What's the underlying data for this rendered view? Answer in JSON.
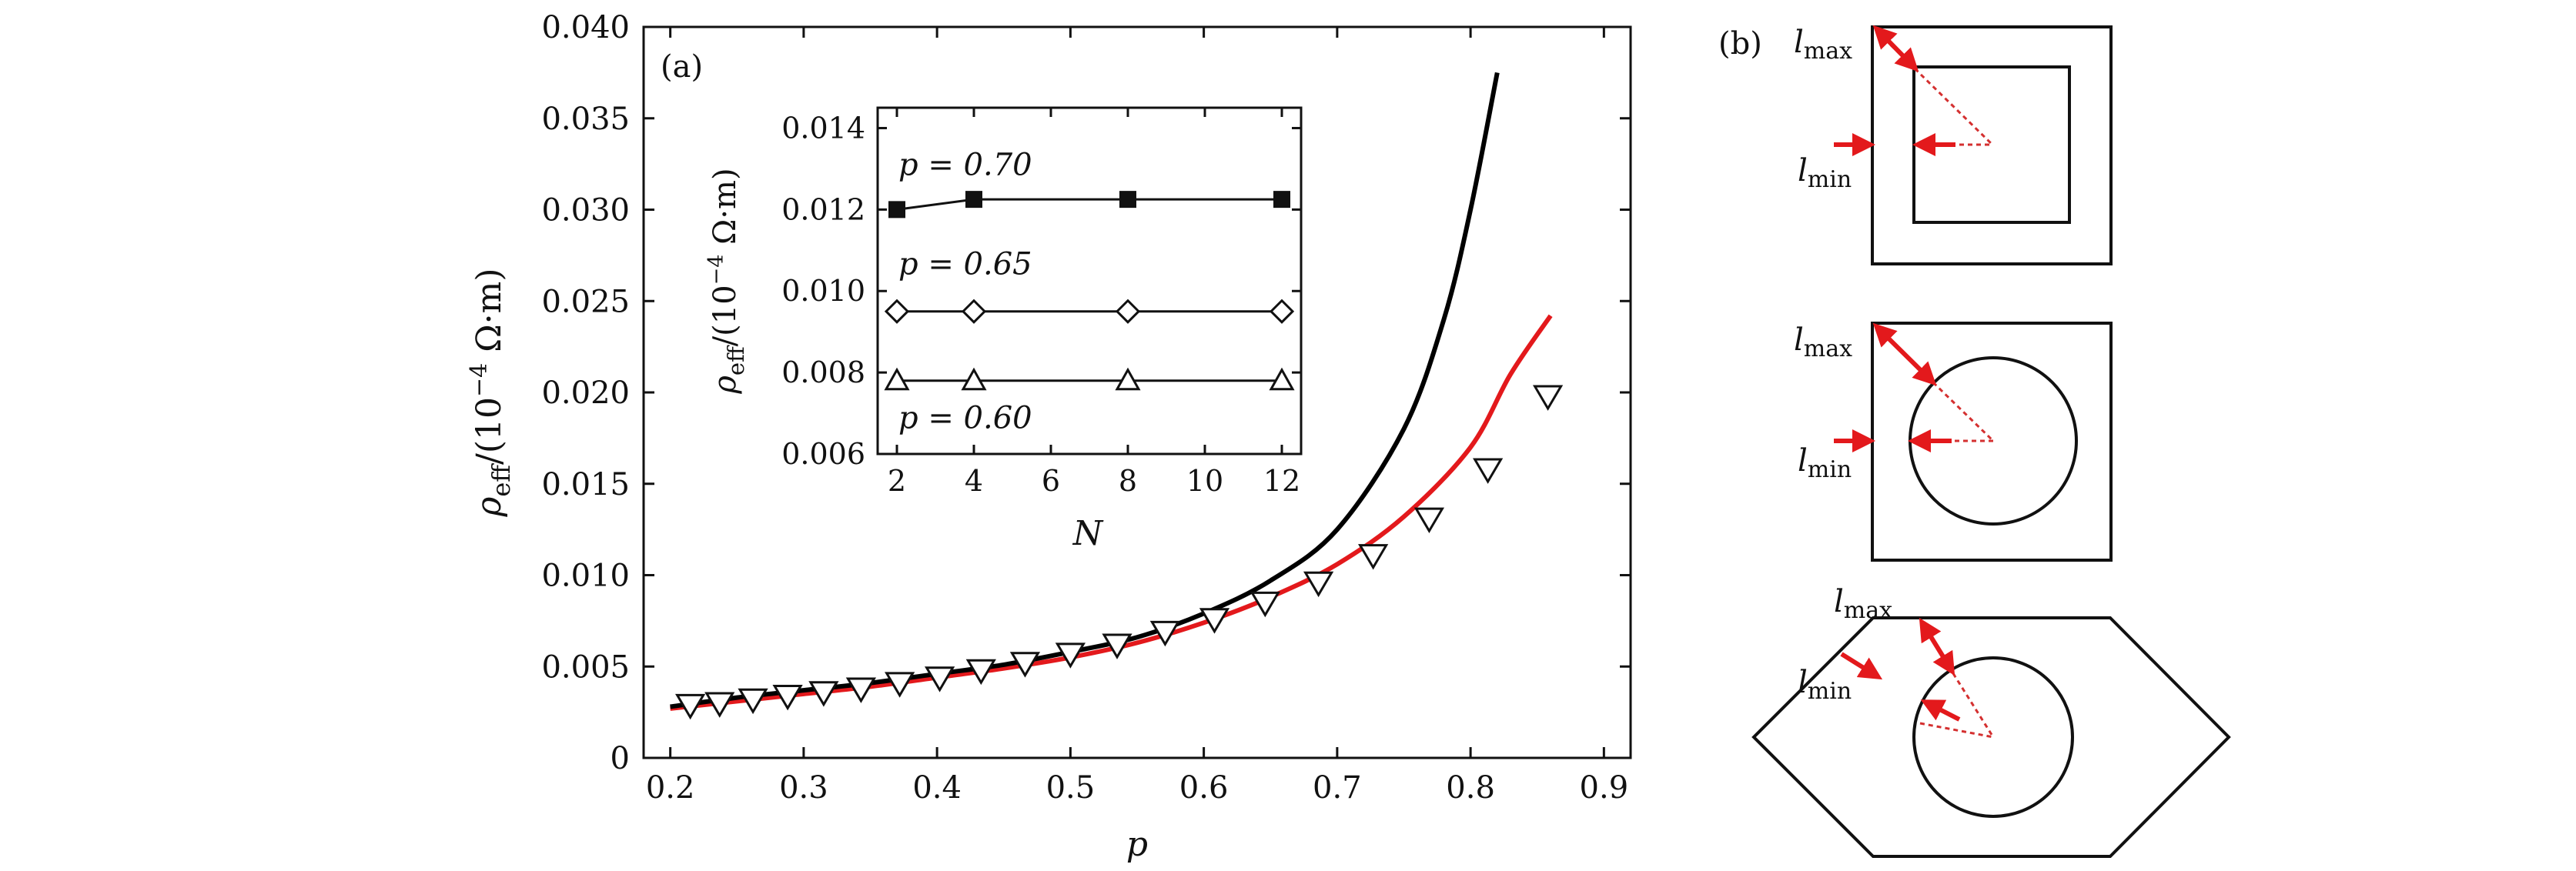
{
  "chart_data": [
    {
      "type": "line",
      "panel_label": "(a)",
      "xlabel": "p",
      "ylabel": "ρ_eff/(10^-4 Ω·m)",
      "xlim": [
        0.18,
        0.92
      ],
      "ylim": [
        0,
        0.04
      ],
      "x_ticks": [
        "0.2",
        "0.3",
        "0.4",
        "0.5",
        "0.6",
        "0.7",
        "0.8",
        "0.9"
      ],
      "y_ticks": [
        "0",
        "0.005",
        "0.010",
        "0.015",
        "0.020",
        "0.025",
        "0.030",
        "0.035",
        "0.040"
      ],
      "grid": false,
      "series": [
        {
          "style": "black solid line",
          "color": "#000000",
          "x": [
            0.2,
            0.25,
            0.3,
            0.35,
            0.4,
            0.45,
            0.5,
            0.55,
            0.6,
            0.65,
            0.7,
            0.75,
            0.78,
            0.8,
            0.82
          ],
          "y": [
            0.0028,
            0.0033,
            0.0037,
            0.0041,
            0.0046,
            0.0051,
            0.0058,
            0.0066,
            0.0079,
            0.0097,
            0.0125,
            0.018,
            0.024,
            0.03,
            0.0375
          ]
        },
        {
          "style": "red solid line",
          "color": "#e3191c",
          "x": [
            0.2,
            0.25,
            0.3,
            0.35,
            0.4,
            0.45,
            0.5,
            0.55,
            0.6,
            0.65,
            0.7,
            0.75,
            0.8,
            0.83,
            0.86
          ],
          "y": [
            0.0027,
            0.0031,
            0.0035,
            0.0039,
            0.0044,
            0.0049,
            0.0055,
            0.0063,
            0.0074,
            0.0088,
            0.0106,
            0.0132,
            0.017,
            0.021,
            0.0242
          ]
        },
        {
          "style": "open down-triangle markers",
          "color": "#000000",
          "x": [
            0.215,
            0.237,
            0.262,
            0.288,
            0.315,
            0.343,
            0.372,
            0.402,
            0.433,
            0.466,
            0.5,
            0.535,
            0.571,
            0.608,
            0.646,
            0.686,
            0.727,
            0.769,
            0.813,
            0.858
          ],
          "y": [
            0.0029,
            0.003,
            0.0032,
            0.0034,
            0.0036,
            0.0038,
            0.0041,
            0.0044,
            0.0048,
            0.0052,
            0.0057,
            0.0062,
            0.0069,
            0.0076,
            0.0085,
            0.0096,
            0.0111,
            0.0131,
            0.0158,
            0.0198
          ]
        }
      ]
    },
    {
      "type": "line",
      "panel_label": "",
      "xlabel": "N",
      "ylabel": "ρ_eff/(10^-4 Ω·m)",
      "xlim": [
        1.5,
        12.5
      ],
      "ylim": [
        0.006,
        0.0145
      ],
      "x_ticks": [
        "2",
        "4",
        "6",
        "8",
        "10",
        "12"
      ],
      "y_ticks": [
        "0.006",
        "0.008",
        "0.010",
        "0.012",
        "0.014"
      ],
      "grid": false,
      "series": [
        {
          "name": "p = 0.70",
          "marker": "filled square",
          "x": [
            2,
            4,
            8,
            12
          ],
          "y": [
            0.012,
            0.01225,
            0.01225,
            0.01225
          ]
        },
        {
          "name": "p = 0.65",
          "marker": "open diamond",
          "x": [
            2,
            4,
            8,
            12
          ],
          "y": [
            0.0095,
            0.0095,
            0.0095,
            0.0095
          ]
        },
        {
          "name": "p = 0.60",
          "marker": "open up-triangle",
          "x": [
            2,
            4,
            8,
            12
          ],
          "y": [
            0.0078,
            0.0078,
            0.0078,
            0.0078
          ]
        }
      ]
    }
  ],
  "panel_b": {
    "label": "(b)",
    "l_max_base": "l",
    "l_max_sub": "max",
    "l_min_base": "l",
    "l_min_sub": "min",
    "arrow_color": "#e3191c"
  }
}
